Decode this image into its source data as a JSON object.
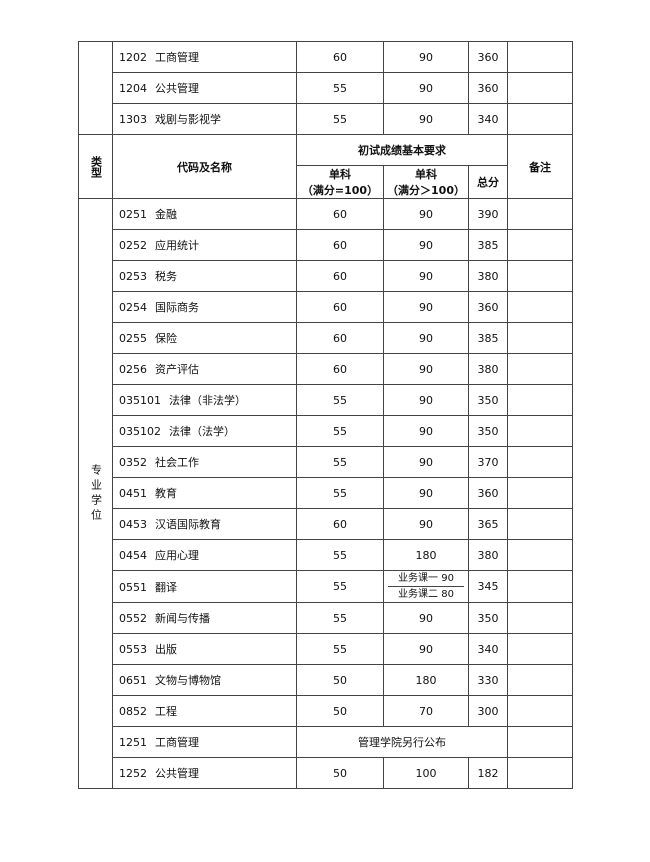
{
  "top_rows": [
    {
      "code": "1202",
      "name": "工商管理",
      "s1": "60",
      "s2": "90",
      "total": "360"
    },
    {
      "code": "1204",
      "name": "公共管理",
      "s1": "55",
      "s2": "90",
      "total": "360"
    },
    {
      "code": "1303",
      "name": "戏剧与影视学",
      "s1": "55",
      "s2": "90",
      "total": "340"
    }
  ],
  "header": {
    "type": "类型",
    "code_name": "代码及名称",
    "requirement": "初试成绩基本要求",
    "s1": "单科",
    "s1_note": "（满分=100）",
    "s2": "单科",
    "s2_note": "（满分＞100）",
    "total": "总分",
    "notes": "备注"
  },
  "group_label": "专业学位",
  "rows": [
    {
      "code": "0251",
      "name": "金融",
      "s1": "60",
      "s2": "90",
      "total": "390"
    },
    {
      "code": "0252",
      "name": "应用统计",
      "s1": "60",
      "s2": "90",
      "total": "385"
    },
    {
      "code": "0253",
      "name": "税务",
      "s1": "60",
      "s2": "90",
      "total": "380"
    },
    {
      "code": "0254",
      "name": "国际商务",
      "s1": "60",
      "s2": "90",
      "total": "360"
    },
    {
      "code": "0255",
      "name": "保险",
      "s1": "60",
      "s2": "90",
      "total": "385"
    },
    {
      "code": "0256",
      "name": "资产评估",
      "s1": "60",
      "s2": "90",
      "total": "380"
    },
    {
      "code": "035101",
      "name": "法律（非法学）",
      "s1": "55",
      "s2": "90",
      "total": "350"
    },
    {
      "code": "035102",
      "name": "法律（法学）",
      "s1": "55",
      "s2": "90",
      "total": "350"
    },
    {
      "code": "0352",
      "name": "社会工作",
      "s1": "55",
      "s2": "90",
      "total": "370"
    },
    {
      "code": "0451",
      "name": "教育",
      "s1": "55",
      "s2": "90",
      "total": "360"
    },
    {
      "code": "0453",
      "name": "汉语国际教育",
      "s1": "60",
      "s2": "90",
      "total": "365"
    },
    {
      "code": "0454",
      "name": "应用心理",
      "s1": "55",
      "s2": "180",
      "total": "380"
    },
    {
      "code": "0551",
      "name": "翻译",
      "s1": "55",
      "s2a": "业务课一 90",
      "s2b": "业务课二 80",
      "total": "345"
    },
    {
      "code": "0552",
      "name": "新闻与传播",
      "s1": "55",
      "s2": "90",
      "total": "350"
    },
    {
      "code": "0553",
      "name": "出版",
      "s1": "55",
      "s2": "90",
      "total": "340"
    },
    {
      "code": "0651",
      "name": "文物与博物馆",
      "s1": "50",
      "s2": "180",
      "total": "330"
    },
    {
      "code": "0852",
      "name": "工程",
      "s1": "50",
      "s2": "70",
      "total": "300"
    },
    {
      "code": "1251",
      "name": "工商管理",
      "merged": "管理学院另行公布"
    },
    {
      "code": "1252",
      "name": "公共管理",
      "s1": "50",
      "s2": "100",
      "total": "182"
    }
  ]
}
